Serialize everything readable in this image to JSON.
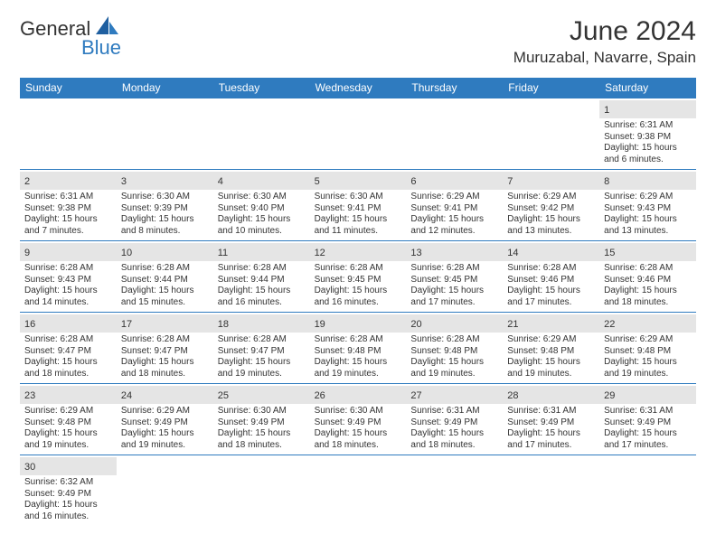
{
  "logo": {
    "part1": "General",
    "part2": "Blue"
  },
  "title": "June 2024",
  "location": "Muruzabal, Navarre, Spain",
  "colors": {
    "header_bg": "#2f7bbf",
    "header_text": "#ffffff",
    "day_num_bg": "#e5e5e5",
    "text": "#333333",
    "row_border": "#2f7bbf",
    "logo_blue": "#2f7bbf"
  },
  "weekdays": [
    "Sunday",
    "Monday",
    "Tuesday",
    "Wednesday",
    "Thursday",
    "Friday",
    "Saturday"
  ],
  "weeks": [
    [
      null,
      null,
      null,
      null,
      null,
      null,
      {
        "n": "1",
        "sr": "6:31 AM",
        "ss": "9:38 PM",
        "dl": "15 hours and 6 minutes."
      }
    ],
    [
      {
        "n": "2",
        "sr": "6:31 AM",
        "ss": "9:38 PM",
        "dl": "15 hours and 7 minutes."
      },
      {
        "n": "3",
        "sr": "6:30 AM",
        "ss": "9:39 PM",
        "dl": "15 hours and 8 minutes."
      },
      {
        "n": "4",
        "sr": "6:30 AM",
        "ss": "9:40 PM",
        "dl": "15 hours and 10 minutes."
      },
      {
        "n": "5",
        "sr": "6:30 AM",
        "ss": "9:41 PM",
        "dl": "15 hours and 11 minutes."
      },
      {
        "n": "6",
        "sr": "6:29 AM",
        "ss": "9:41 PM",
        "dl": "15 hours and 12 minutes."
      },
      {
        "n": "7",
        "sr": "6:29 AM",
        "ss": "9:42 PM",
        "dl": "15 hours and 13 minutes."
      },
      {
        "n": "8",
        "sr": "6:29 AM",
        "ss": "9:43 PM",
        "dl": "15 hours and 13 minutes."
      }
    ],
    [
      {
        "n": "9",
        "sr": "6:28 AM",
        "ss": "9:43 PM",
        "dl": "15 hours and 14 minutes."
      },
      {
        "n": "10",
        "sr": "6:28 AM",
        "ss": "9:44 PM",
        "dl": "15 hours and 15 minutes."
      },
      {
        "n": "11",
        "sr": "6:28 AM",
        "ss": "9:44 PM",
        "dl": "15 hours and 16 minutes."
      },
      {
        "n": "12",
        "sr": "6:28 AM",
        "ss": "9:45 PM",
        "dl": "15 hours and 16 minutes."
      },
      {
        "n": "13",
        "sr": "6:28 AM",
        "ss": "9:45 PM",
        "dl": "15 hours and 17 minutes."
      },
      {
        "n": "14",
        "sr": "6:28 AM",
        "ss": "9:46 PM",
        "dl": "15 hours and 17 minutes."
      },
      {
        "n": "15",
        "sr": "6:28 AM",
        "ss": "9:46 PM",
        "dl": "15 hours and 18 minutes."
      }
    ],
    [
      {
        "n": "16",
        "sr": "6:28 AM",
        "ss": "9:47 PM",
        "dl": "15 hours and 18 minutes."
      },
      {
        "n": "17",
        "sr": "6:28 AM",
        "ss": "9:47 PM",
        "dl": "15 hours and 18 minutes."
      },
      {
        "n": "18",
        "sr": "6:28 AM",
        "ss": "9:47 PM",
        "dl": "15 hours and 19 minutes."
      },
      {
        "n": "19",
        "sr": "6:28 AM",
        "ss": "9:48 PM",
        "dl": "15 hours and 19 minutes."
      },
      {
        "n": "20",
        "sr": "6:28 AM",
        "ss": "9:48 PM",
        "dl": "15 hours and 19 minutes."
      },
      {
        "n": "21",
        "sr": "6:29 AM",
        "ss": "9:48 PM",
        "dl": "15 hours and 19 minutes."
      },
      {
        "n": "22",
        "sr": "6:29 AM",
        "ss": "9:48 PM",
        "dl": "15 hours and 19 minutes."
      }
    ],
    [
      {
        "n": "23",
        "sr": "6:29 AM",
        "ss": "9:48 PM",
        "dl": "15 hours and 19 minutes."
      },
      {
        "n": "24",
        "sr": "6:29 AM",
        "ss": "9:49 PM",
        "dl": "15 hours and 19 minutes."
      },
      {
        "n": "25",
        "sr": "6:30 AM",
        "ss": "9:49 PM",
        "dl": "15 hours and 18 minutes."
      },
      {
        "n": "26",
        "sr": "6:30 AM",
        "ss": "9:49 PM",
        "dl": "15 hours and 18 minutes."
      },
      {
        "n": "27",
        "sr": "6:31 AM",
        "ss": "9:49 PM",
        "dl": "15 hours and 18 minutes."
      },
      {
        "n": "28",
        "sr": "6:31 AM",
        "ss": "9:49 PM",
        "dl": "15 hours and 17 minutes."
      },
      {
        "n": "29",
        "sr": "6:31 AM",
        "ss": "9:49 PM",
        "dl": "15 hours and 17 minutes."
      }
    ],
    [
      {
        "n": "30",
        "sr": "6:32 AM",
        "ss": "9:49 PM",
        "dl": "15 hours and 16 minutes."
      },
      null,
      null,
      null,
      null,
      null,
      null
    ]
  ],
  "labels": {
    "sunrise": "Sunrise:",
    "sunset": "Sunset:",
    "daylight": "Daylight:"
  }
}
